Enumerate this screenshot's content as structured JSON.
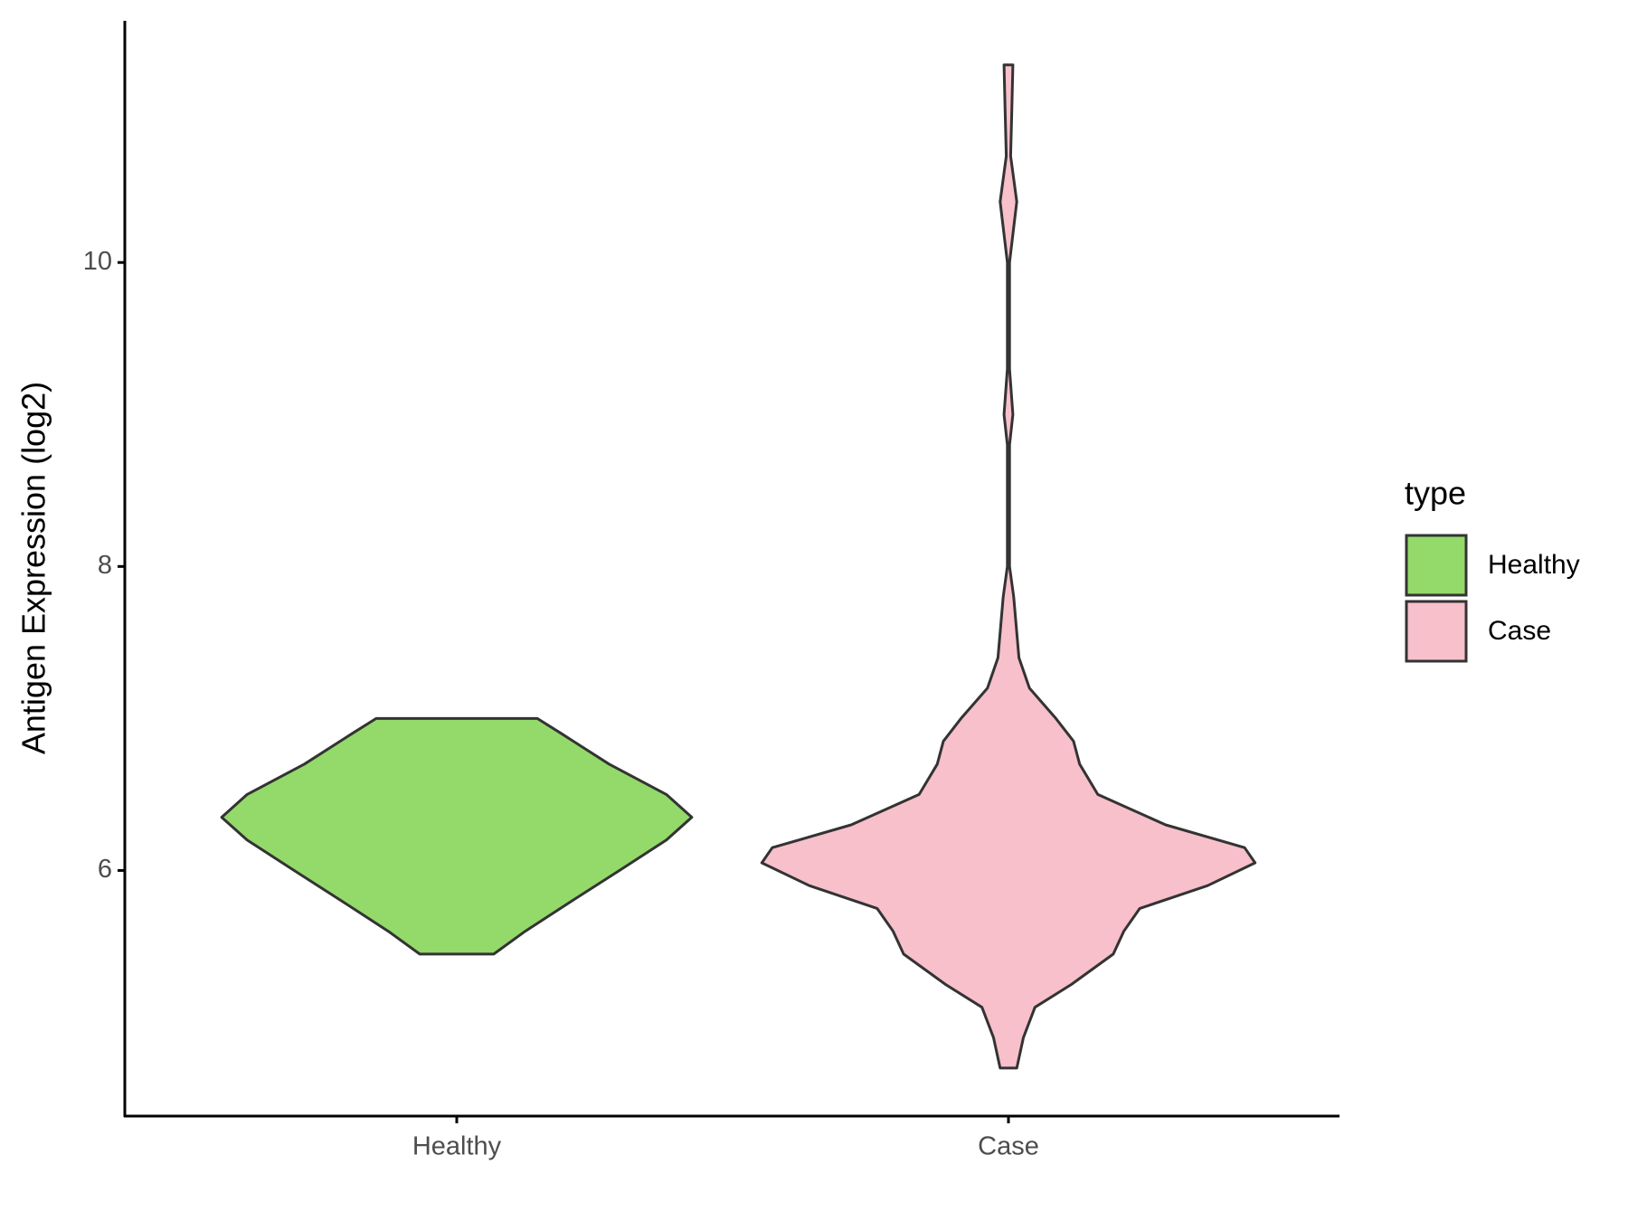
{
  "chart_data": {
    "type": "violin",
    "y_label": "Antigen Expression (log2)",
    "legend_title": "type",
    "categories": [
      "Healthy",
      "Case"
    ],
    "ylim": [
      4.39,
      11.59
    ],
    "yticks": [
      6,
      8,
      10
    ],
    "series": [
      {
        "name": "Healthy",
        "color": "#93da6a",
        "y": [
          5.45,
          5.6,
          5.8,
          6.0,
          6.2,
          6.35,
          6.5,
          6.7,
          6.9,
          7.0
        ],
        "width": [
          0.067,
          0.124,
          0.209,
          0.295,
          0.38,
          0.426,
          0.38,
          0.276,
          0.19,
          0.146
        ]
      },
      {
        "name": "Case",
        "color": "#f7c0cb",
        "y": [
          4.7,
          4.9,
          5.1,
          5.25,
          5.45,
          5.6,
          5.75,
          5.9,
          6.05,
          6.15,
          6.3,
          6.5,
          6.7,
          6.85,
          7.0,
          7.2,
          7.4,
          7.8,
          8.0,
          8.5,
          8.8,
          9.0,
          9.3,
          10.0,
          10.4,
          10.7,
          11.0,
          11.3
        ],
        "width": [
          0.015,
          0.027,
          0.048,
          0.114,
          0.19,
          0.209,
          0.238,
          0.361,
          0.447,
          0.428,
          0.285,
          0.162,
          0.129,
          0.118,
          0.086,
          0.038,
          0.019,
          0.0095,
          0.002,
          0.002,
          0.002,
          0.008,
          0.002,
          0.002,
          0.015,
          0.004,
          0.006,
          0.008
        ]
      }
    ]
  }
}
